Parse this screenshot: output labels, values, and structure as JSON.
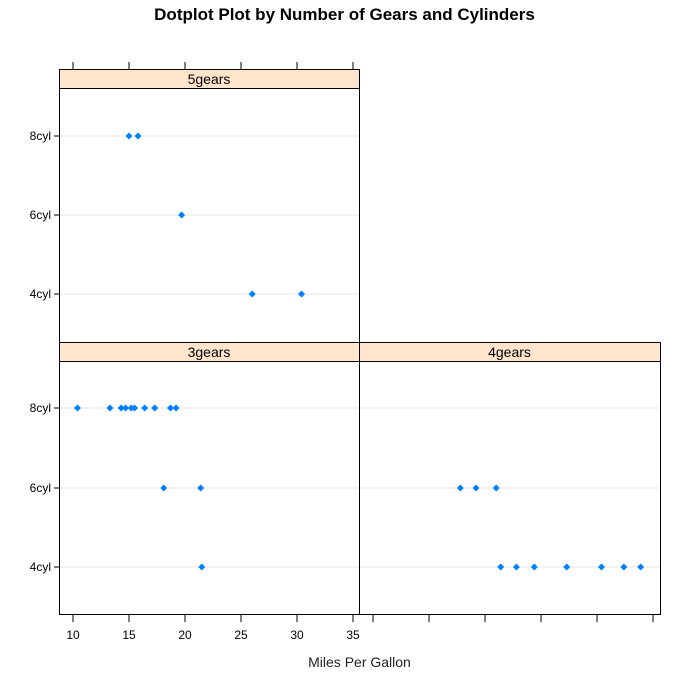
{
  "chart_data": {
    "type": "scatter",
    "subtype": "dotplot",
    "title": "Dotplot Plot by Number of Gears and Cylinders",
    "xlabel": "Miles Per Gallon",
    "ylabel": "",
    "xlim": [
      9,
      36
    ],
    "x_ticks": [
      10,
      15,
      20,
      25,
      30,
      35
    ],
    "y_categories": [
      "4cyl",
      "6cyl",
      "8cyl"
    ],
    "grid": true,
    "marker_color": "#0080ff",
    "strip_color": "#ffe5cc",
    "gridline_color": "#e6e6e6",
    "panels": [
      {
        "label": "5gears",
        "position": "top-left",
        "series": [
          {
            "name": "8cyl",
            "values": [
              15.0,
              15.8
            ]
          },
          {
            "name": "6cyl",
            "values": [
              19.7
            ]
          },
          {
            "name": "4cyl",
            "values": [
              26.0,
              30.4
            ]
          }
        ]
      },
      {
        "label": "3gears",
        "position": "bottom-left",
        "series": [
          {
            "name": "8cyl",
            "values": [
              10.4,
              13.3,
              14.3,
              14.7,
              15.2,
              15.5,
              16.4,
              17.3,
              18.7,
              19.2
            ]
          },
          {
            "name": "6cyl",
            "values": [
              18.1,
              21.4
            ]
          },
          {
            "name": "4cyl",
            "values": [
              21.5
            ]
          }
        ]
      },
      {
        "label": "4gears",
        "position": "bottom-right",
        "series": [
          {
            "name": "8cyl",
            "values": []
          },
          {
            "name": "6cyl",
            "values": [
              17.8,
              19.2,
              21.0
            ]
          },
          {
            "name": "4cyl",
            "values": [
              21.4,
              22.8,
              24.4,
              27.3,
              30.4,
              32.4,
              33.9
            ]
          }
        ]
      }
    ]
  }
}
